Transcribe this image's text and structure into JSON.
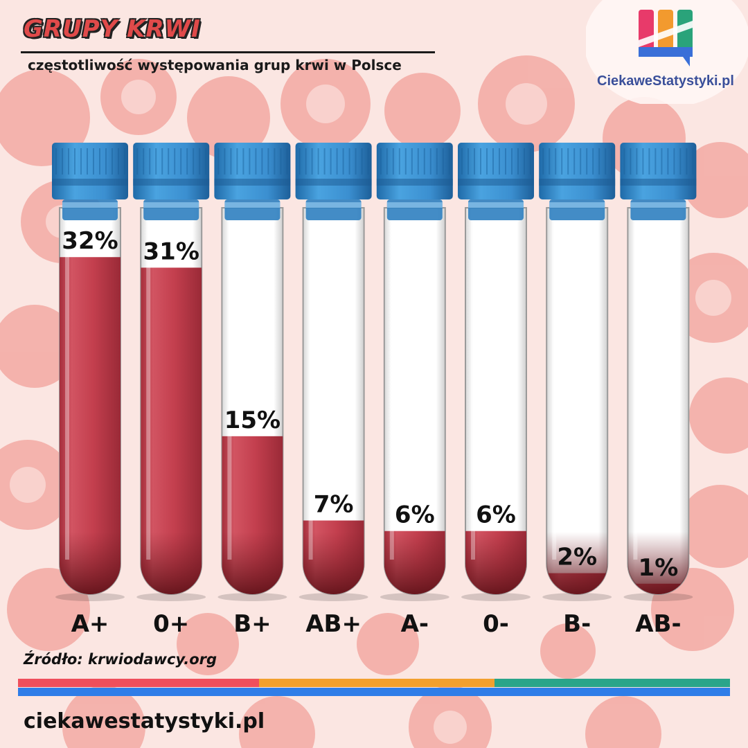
{
  "header": {
    "title": "GRUPY KRWI",
    "subtitle": "częstotliwość występowania grup krwi w Polsce"
  },
  "logo": {
    "text": "CiekaweStatystyki.pl",
    "colors": [
      "#e83a6a",
      "#f29a2e",
      "#2aa37a",
      "#3a6fd8"
    ]
  },
  "chart_data": {
    "type": "bar",
    "categories": [
      "A+",
      "0+",
      "B+",
      "AB+",
      "A-",
      "0-",
      "B-",
      "AB-"
    ],
    "values": [
      32,
      31,
      15,
      7,
      6,
      6,
      2,
      1
    ],
    "value_labels": [
      "32%",
      "31%",
      "15%",
      "7%",
      "6%",
      "6%",
      "2%",
      "1%"
    ],
    "title": "GRUPY KRWI",
    "subtitle": "częstotliwość występowania grup krwi w Polsce",
    "xlabel": "",
    "ylabel": "",
    "unit": "%",
    "grid": false,
    "legend": "none",
    "bar_color": "#c6404e",
    "cap_color": "#3b8fd0"
  },
  "footer": {
    "source": "Źródło: krwiodawcy.org",
    "url": "ciekawestatystyki.pl",
    "stripe_colors": [
      "#ef4f5c",
      "#f2a02e",
      "#2aa58a",
      "#2f7de8"
    ]
  }
}
